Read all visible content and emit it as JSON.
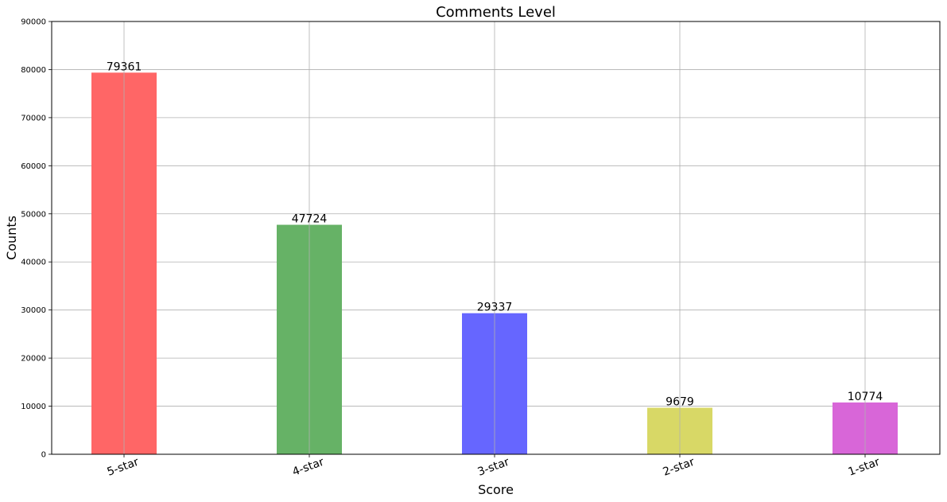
{
  "chart_data": {
    "type": "bar",
    "title": "Comments Level",
    "xlabel": "Score",
    "ylabel": "Counts",
    "categories": [
      "5-star",
      "4-star",
      "3-star",
      "2-star",
      "1-star"
    ],
    "values": [
      79361,
      47724,
      29337,
      9679,
      10774
    ],
    "data_labels": [
      "79361",
      "47724",
      "29337",
      "9679",
      "10774"
    ],
    "colors": [
      "#ff6666",
      "#66b266",
      "#6666ff",
      "#d8d866",
      "#d866d8"
    ],
    "ylim": [
      0,
      90000
    ],
    "yticks": [
      0,
      10000,
      20000,
      30000,
      40000,
      50000,
      60000,
      70000,
      80000,
      90000
    ],
    "ytick_labels": [
      "0",
      "10000",
      "20000",
      "30000",
      "40000",
      "50000",
      "60000",
      "70000",
      "80000",
      "90000"
    ],
    "grid": true
  }
}
